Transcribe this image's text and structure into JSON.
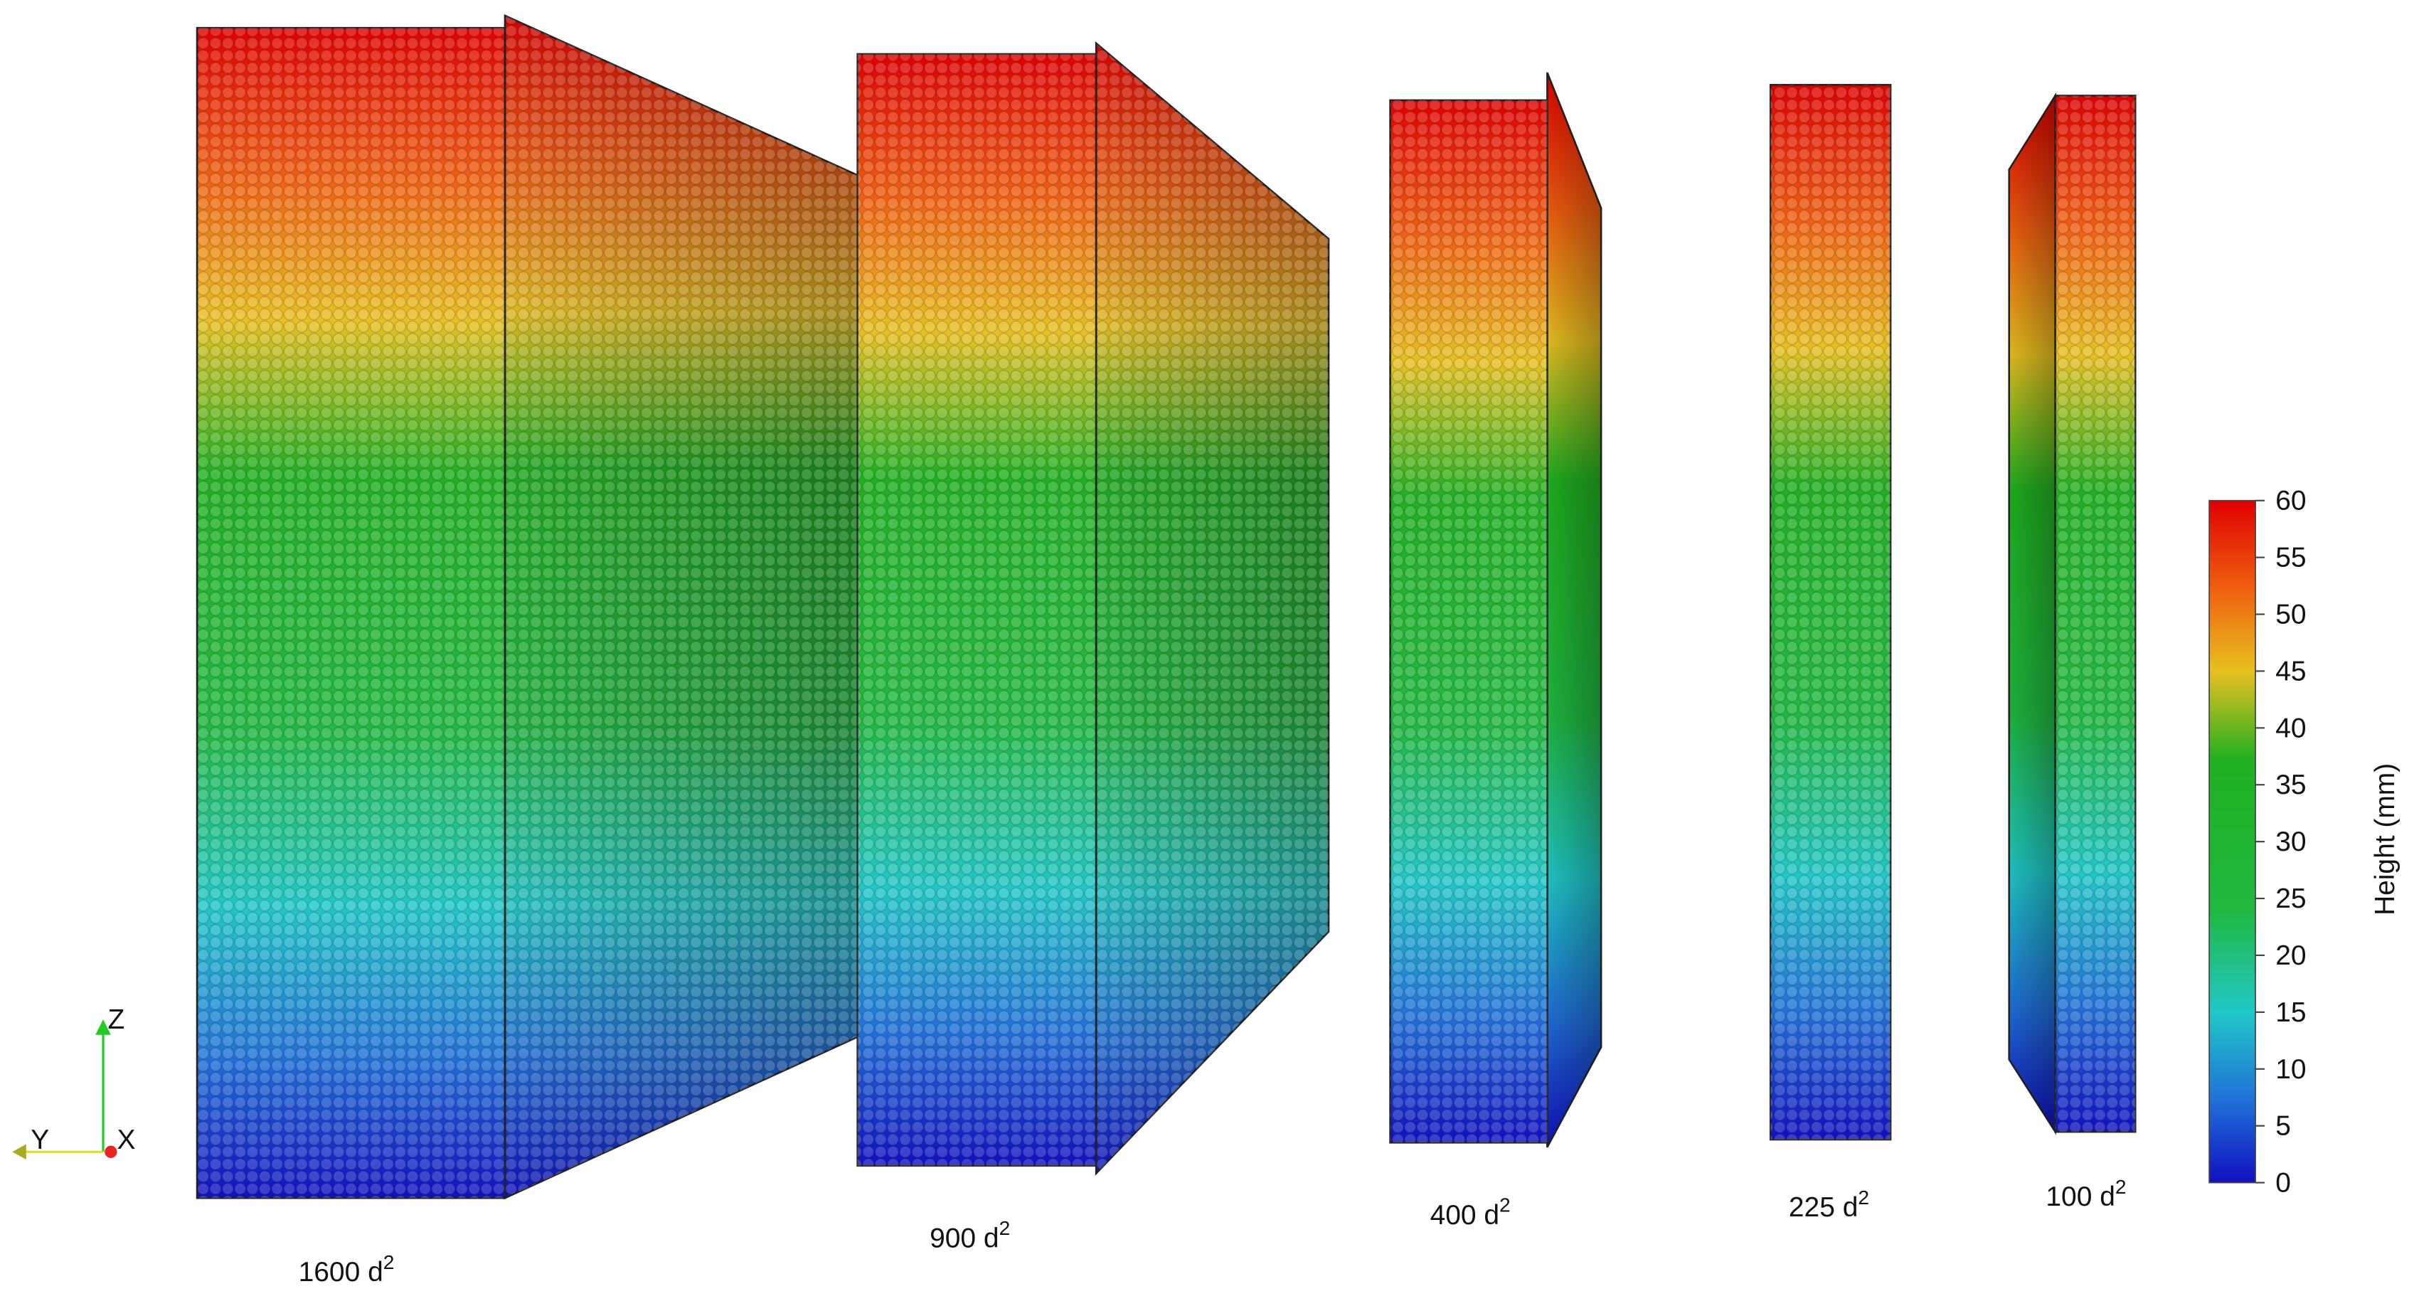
{
  "samples": [
    {
      "label": "1600 d",
      "exponent": "2"
    },
    {
      "label": "900 d",
      "exponent": "2"
    },
    {
      "label": "400 d",
      "exponent": "2"
    },
    {
      "label": "225 d",
      "exponent": "2"
    },
    {
      "label": "100 d",
      "exponent": "2"
    }
  ],
  "colorbar": {
    "title": "Height (mm)",
    "range": [
      0,
      60
    ],
    "ticks": [
      0,
      5,
      10,
      15,
      20,
      25,
      30,
      35,
      40,
      45,
      50,
      55,
      60
    ]
  },
  "axes": {
    "z": "Z",
    "y": "Y",
    "x": "X"
  }
}
